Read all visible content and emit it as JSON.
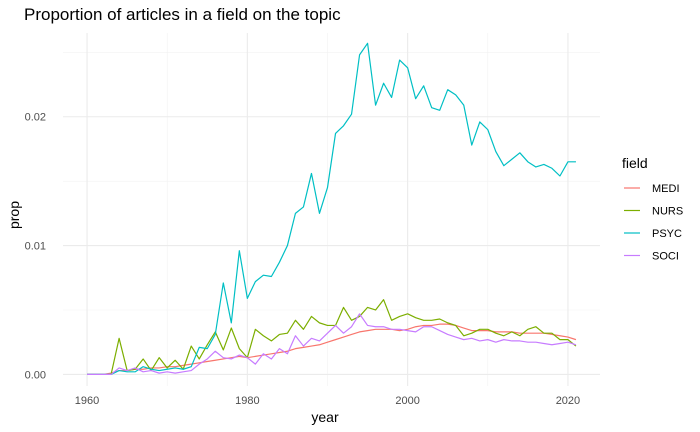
{
  "chart_data": {
    "type": "line",
    "title": "Proportion of articles in a field on the topic",
    "xlabel": "year",
    "ylabel": "prop",
    "xlim": [
      1957,
      2024
    ],
    "ylim": [
      -0.0009,
      0.0265
    ],
    "x_ticks": [
      1960,
      1980,
      2000,
      2020
    ],
    "x_tick_labels": [
      "1960",
      "1980",
      "2000",
      "2020"
    ],
    "y_ticks": [
      0,
      0.01,
      0.02
    ],
    "y_tick_labels": [
      "0.00",
      "0.01",
      "0.02"
    ],
    "x_minor": [
      1970,
      1990,
      2010
    ],
    "y_minor": [
      0.005,
      0.015,
      0.025
    ],
    "grid": true,
    "legend": {
      "title": "field",
      "position": "right"
    },
    "x": [
      1960,
      1961,
      1962,
      1963,
      1964,
      1965,
      1966,
      1967,
      1968,
      1969,
      1970,
      1971,
      1972,
      1973,
      1974,
      1975,
      1976,
      1977,
      1978,
      1979,
      1980,
      1981,
      1982,
      1983,
      1984,
      1985,
      1986,
      1987,
      1988,
      1989,
      1990,
      1991,
      1992,
      1993,
      1994,
      1995,
      1996,
      1997,
      1998,
      1999,
      2000,
      2001,
      2002,
      2003,
      2004,
      2005,
      2006,
      2007,
      2008,
      2009,
      2010,
      2011,
      2012,
      2013,
      2014,
      2015,
      2016,
      2017,
      2018,
      2019,
      2020,
      2021
    ],
    "series": [
      {
        "name": "MEDI",
        "color": "#F8766D",
        "values": [
          0,
          0,
          0,
          0.0001,
          0.0003,
          0.0003,
          0.0004,
          0.0004,
          0.0005,
          0.0005,
          0.0006,
          0.0006,
          0.0007,
          0.0008,
          0.0009,
          0.001,
          0.0011,
          0.0012,
          0.0013,
          0.0014,
          0.0013,
          0.0014,
          0.0015,
          0.0016,
          0.0017,
          0.0018,
          0.002,
          0.0021,
          0.0022,
          0.0023,
          0.0025,
          0.0027,
          0.0029,
          0.0031,
          0.0033,
          0.0034,
          0.0035,
          0.0035,
          0.0035,
          0.0034,
          0.0035,
          0.0037,
          0.0038,
          0.0038,
          0.0039,
          0.0039,
          0.0038,
          0.0036,
          0.0034,
          0.0034,
          0.0034,
          0.0033,
          0.0033,
          0.0033,
          0.0032,
          0.0032,
          0.0032,
          0.0032,
          0.0031,
          0.003,
          0.0029,
          0.0027
        ]
      },
      {
        "name": "NURS",
        "color": "#7CAE00",
        "values": [
          0,
          0,
          0,
          0,
          0.0028,
          0.0003,
          0.0004,
          0.0012,
          0.0003,
          0.0013,
          0.0005,
          0.0011,
          0.0004,
          0.0022,
          0.0012,
          0.0023,
          0.0033,
          0.0019,
          0.0036,
          0.002,
          0.0013,
          0.0035,
          0.003,
          0.0026,
          0.0031,
          0.0032,
          0.0042,
          0.0035,
          0.0045,
          0.004,
          0.0038,
          0.0038,
          0.0052,
          0.0042,
          0.0045,
          0.0052,
          0.005,
          0.0058,
          0.0042,
          0.0045,
          0.0047,
          0.0044,
          0.0042,
          0.0042,
          0.0043,
          0.004,
          0.0038,
          0.003,
          0.0032,
          0.0035,
          0.0035,
          0.0032,
          0.003,
          0.0033,
          0.003,
          0.0035,
          0.0037,
          0.0032,
          0.0032,
          0.0027,
          0.0027,
          0.0022
        ]
      },
      {
        "name": "PSYC",
        "color": "#00BFC4",
        "values": [
          0,
          0,
          0,
          0,
          0.0003,
          0.0002,
          0.0002,
          0.0006,
          0.0004,
          0.0003,
          0.0004,
          0.0005,
          0.0004,
          0.0006,
          0.0021,
          0.002,
          0.0031,
          0.0071,
          0.004,
          0.0096,
          0.0059,
          0.0072,
          0.0077,
          0.0076,
          0.0087,
          0.01,
          0.0125,
          0.013,
          0.0156,
          0.0125,
          0.0145,
          0.0187,
          0.0193,
          0.0202,
          0.0248,
          0.0257,
          0.0209,
          0.0226,
          0.0215,
          0.0244,
          0.0238,
          0.0214,
          0.0224,
          0.0207,
          0.0205,
          0.0221,
          0.0217,
          0.0209,
          0.0178,
          0.0196,
          0.019,
          0.0173,
          0.0162,
          0.0167,
          0.0172,
          0.0165,
          0.0161,
          0.0163,
          0.016,
          0.0154,
          0.0165,
          0.0165
        ]
      },
      {
        "name": "SOCI",
        "color": "#C77CFF",
        "values": [
          0,
          0,
          0,
          0,
          0.0005,
          0.0003,
          0.0005,
          0.0002,
          0.0003,
          0.0001,
          0.0002,
          0.0001,
          0.0002,
          0.0003,
          0.0008,
          0.0012,
          0.0018,
          0.0013,
          0.0012,
          0.0015,
          0.0013,
          0.0008,
          0.0016,
          0.0012,
          0.002,
          0.0016,
          0.003,
          0.0022,
          0.0028,
          0.0026,
          0.0032,
          0.0038,
          0.0032,
          0.0037,
          0.0047,
          0.0038,
          0.0037,
          0.0037,
          0.0035,
          0.0035,
          0.0034,
          0.0033,
          0.0037,
          0.0037,
          0.0034,
          0.0031,
          0.0029,
          0.0027,
          0.0028,
          0.0026,
          0.0027,
          0.0025,
          0.0027,
          0.0026,
          0.0026,
          0.0025,
          0.0025,
          0.0024,
          0.0023,
          0.0024,
          0.0025,
          0.0023
        ]
      }
    ]
  }
}
